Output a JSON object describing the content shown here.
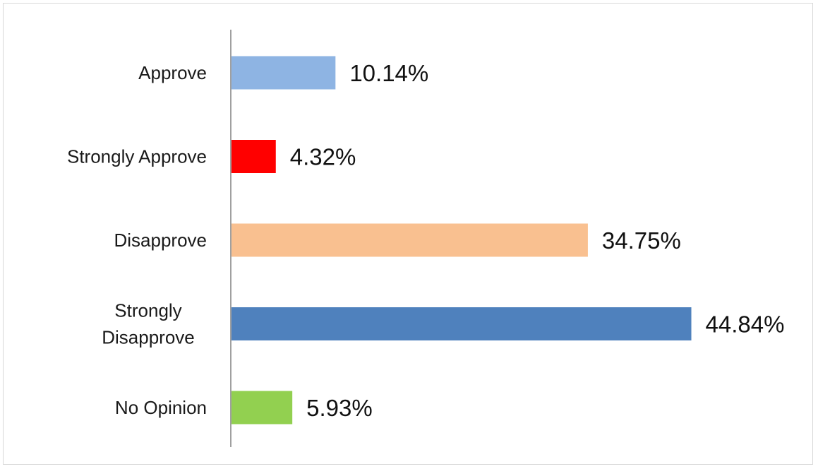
{
  "chart_data": {
    "type": "bar",
    "orientation": "horizontal",
    "categories": [
      "Approve",
      "Strongly Approve",
      "Disapprove",
      "Strongly Disapprove",
      "No Opinion"
    ],
    "category_lines": [
      [
        "Approve"
      ],
      [
        "Strongly Approve"
      ],
      [
        "Disapprove"
      ],
      [
        "Strongly",
        "Disapprove"
      ],
      [
        "No Opinion"
      ]
    ],
    "values": [
      10.14,
      4.32,
      34.75,
      44.84,
      5.93
    ],
    "value_labels": [
      "10.14%",
      "4.32%",
      "34.75%",
      "44.84%",
      "5.93%"
    ],
    "colors": [
      "#8EB4E3",
      "#FF0000",
      "#F9C090",
      "#4F81BD",
      "#92D050"
    ],
    "xlim": [
      0,
      45
    ],
    "grid": false,
    "legend": "none"
  }
}
